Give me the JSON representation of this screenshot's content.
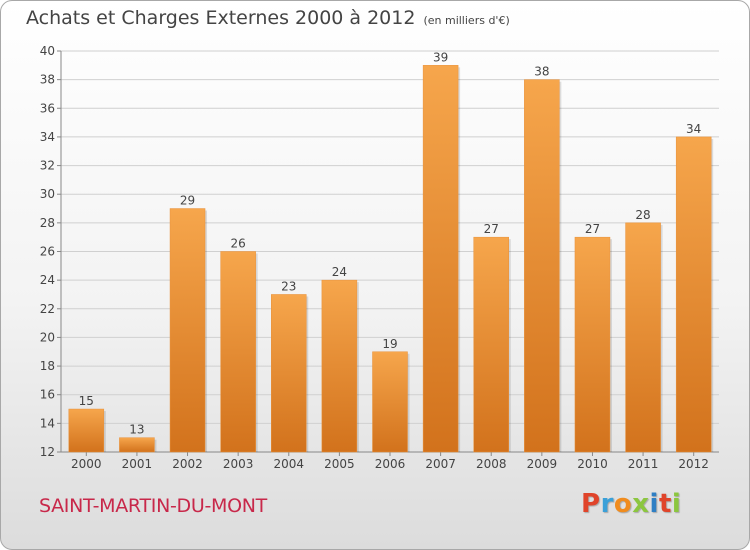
{
  "header": {
    "title": "Achats et Charges Externes 2000 à 2012",
    "subtitle": "(en milliers d'€)"
  },
  "footer": {
    "commune": "SAINT-MARTIN-DU-MONT",
    "logo_text": "Proxiti",
    "logo_colors": [
      "#e0442a",
      "#3aa0d8",
      "#f08c1e",
      "#8cc63f",
      "#2f7fc4",
      "#e0442a",
      "#8cc63f"
    ]
  },
  "colors": {
    "bar_light": "#f6a64c",
    "bar_dark": "#d2721c",
    "axis_text": "#444444",
    "grid": "#d0d0d0",
    "commune_text": "#c8284a"
  },
  "chart_data": {
    "type": "bar",
    "categories": [
      "2000",
      "2001",
      "2002",
      "2003",
      "2004",
      "2005",
      "2006",
      "2007",
      "2008",
      "2009",
      "2010",
      "2011",
      "2012"
    ],
    "values": [
      15,
      13,
      29,
      26,
      23,
      24,
      19,
      39,
      27,
      38,
      27,
      28,
      34
    ],
    "data_labels": [
      "15",
      "13",
      "29",
      "26",
      "23",
      "24",
      "19",
      "39",
      "27",
      "38",
      "27",
      "28",
      "34"
    ],
    "y_ticks": [
      "12",
      "14",
      "16",
      "18",
      "20",
      "22",
      "24",
      "26",
      "28",
      "30",
      "32",
      "34",
      "36",
      "38",
      "40"
    ],
    "ylim": [
      12,
      40
    ],
    "grid": true,
    "title": "Achats et Charges Externes 2000 à 2012",
    "xlabel": "",
    "ylabel": ""
  }
}
